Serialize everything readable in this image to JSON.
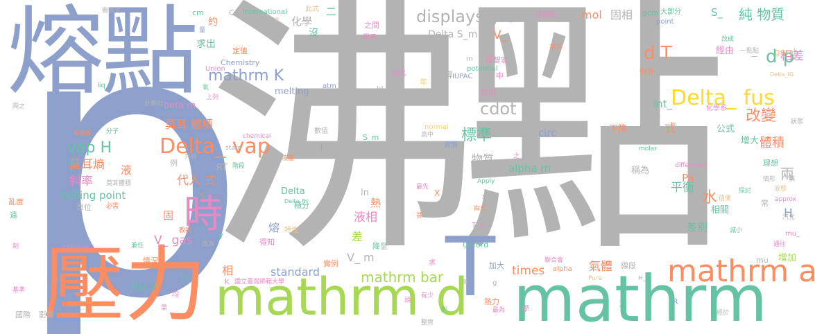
{
  "palette": {
    "gray": "#b3b3b3",
    "blue": "#8da0cb",
    "orange": "#fc8d62",
    "green": "#a6d854",
    "teal": "#66c2a5",
    "pink": "#e78ac3",
    "yellow": "#ffd92f",
    "tan": "#e5c494"
  },
  "words": [
    {
      "text": "沸點",
      "color": "gray"
    },
    {
      "text": "p",
      "color": "blue"
    },
    {
      "text": "熔點",
      "color": "blue"
    },
    {
      "text": "壓力",
      "color": "orange"
    },
    {
      "text": "mathrm",
      "color": "teal"
    },
    {
      "text": "mathrm d",
      "color": "green"
    },
    {
      "text": "T",
      "color": "blue"
    },
    {
      "text": "時",
      "color": "pink"
    },
    {
      "text": "mathrm atm",
      "color": "orange"
    },
    {
      "text": "Delta_ vap",
      "color": "orange"
    },
    {
      "text": "Delta_ fus",
      "color": "yellow"
    },
    {
      "text": "mathrm K",
      "color": "blue"
    },
    {
      "text": "d T",
      "color": "orange"
    },
    {
      "text": "d p",
      "color": "teal"
    },
    {
      "text": "displaystyle",
      "color": "gray"
    },
    {
      "text": "純 物質",
      "color": "teal"
    },
    {
      "text": "改變",
      "color": "orange"
    },
    {
      "text": "cdot",
      "color": "gray"
    },
    {
      "text": "標準",
      "color": "teal"
    },
    {
      "text": "vap H",
      "color": "teal"
    },
    {
      "text": "mathrm bar",
      "color": "green"
    },
    {
      "text": "莫耳 體積",
      "color": "orange"
    },
    {
      "text": "水",
      "color": "orange"
    },
    {
      "text": "體積",
      "color": "orange"
    },
    {
      "text": "相差",
      "color": "pink"
    },
    {
      "text": "兩",
      "color": "gray"
    },
    {
      "text": "代入 式",
      "color": "orange"
    },
    {
      "text": "莫耳熵",
      "color": "orange"
    },
    {
      "text": "斜率",
      "color": "pink"
    },
    {
      "text": "液相",
      "color": "pink"
    },
    {
      "text": "物質",
      "color": "gray"
    },
    {
      "text": "差別",
      "color": "teal"
    },
    {
      "text": "平衡",
      "color": "teal"
    },
    {
      "text": "氣體",
      "color": "orange"
    },
    {
      "text": "mol",
      "color": "orange"
    },
    {
      "text": "固相",
      "color": "gray"
    },
    {
      "text": "V_ gas",
      "color": "pink"
    },
    {
      "text": "V_ m",
      "color": "gray"
    },
    {
      "text": "fus V",
      "color": "teal"
    },
    {
      "text": "times",
      "color": "orange"
    },
    {
      "text": "standard",
      "color": "blue"
    },
    {
      "text": "boiling point",
      "color": "teal"
    },
    {
      "text": "Delta S_m",
      "color": "gray"
    },
    {
      "text": "alpha m",
      "color": "teal"
    },
    {
      "text": "circ",
      "color": "blue"
    },
    {
      "text": "int_",
      "color": "teal"
    },
    {
      "text": "S_",
      "color": "teal"
    },
    {
      "text": "V_",
      "color": "orange"
    },
    {
      "text": "Pa",
      "color": "orange"
    },
    {
      "text": "H",
      "color": "blue"
    },
    {
      "text": "式",
      "color": "orange"
    },
    {
      "text": "液",
      "color": "orange"
    },
    {
      "text": "固",
      "color": "orange"
    },
    {
      "text": "熔",
      "color": "blue"
    },
    {
      "text": "相",
      "color": "orange"
    },
    {
      "text": "差",
      "color": "green"
    },
    {
      "text": "熱",
      "color": "orange"
    },
    {
      "text": "化學",
      "color": "gray"
    },
    {
      "text": "沒",
      "color": "teal"
    },
    {
      "text": "二",
      "color": "teal"
    },
    {
      "text": "約",
      "color": "orange"
    },
    {
      "text": "求出",
      "color": "teal"
    },
    {
      "text": "RT",
      "color": "gray"
    },
    {
      "text": "beta m",
      "color": "pink"
    },
    {
      "text": "melting",
      "color": "blue"
    },
    {
      "text": "Delta",
      "color": "teal"
    },
    {
      "text": "ln",
      "color": "gray"
    },
    {
      "text": "下降",
      "color": "orange"
    },
    {
      "text": "稱為",
      "color": "gray"
    },
    {
      "text": "相關",
      "color": "teal"
    },
    {
      "text": "公式",
      "color": "teal"
    },
    {
      "text": "增大",
      "color": "teal"
    },
    {
      "text": "增加",
      "color": "green"
    },
    {
      "text": "經由",
      "color": "pink"
    },
    {
      "text": "gmol",
      "color": "tan"
    },
    {
      "text": "cm",
      "color": "teal"
    },
    {
      "text": "C",
      "color": "gray"
    },
    {
      "text": "International",
      "color": "teal"
    },
    {
      "text": "定值",
      "color": "orange"
    },
    {
      "text": "Chemistry",
      "color": "blue"
    },
    {
      "text": "Union",
      "color": "pink"
    },
    {
      "text": "e",
      "color": "tan"
    },
    {
      "text": "kJ",
      "color": "gray"
    },
    {
      "text": "atm",
      "color": "blue"
    },
    {
      "text": "年",
      "color": "yellow"
    },
    {
      "text": "邱智宏",
      "color": "pink"
    },
    {
      "text": "IUPAC",
      "color": "blue"
    },
    {
      "text": "potential",
      "color": "teal"
    },
    {
      "text": "中",
      "color": "pink"
    },
    {
      "text": "推導",
      "color": "gray"
    },
    {
      "text": "熔化",
      "color": "pink"
    },
    {
      "text": "氣相",
      "color": "pink"
    },
    {
      "text": "之間",
      "color": "pink"
    },
    {
      "text": "此式",
      "color": "tan"
    },
    {
      "text": "量",
      "color": "blue"
    },
    {
      "text": "gcm",
      "color": "teal"
    },
    {
      "text": "大部分",
      "color": "teal"
    },
    {
      "text": "point",
      "color": "blue"
    },
    {
      "text": "接觸到",
      "color": "pink"
    },
    {
      "text": "學子",
      "color": "pink"
    },
    {
      "text": "例外",
      "color": "orange"
    },
    {
      "text": "溫度",
      "color": "gray"
    },
    {
      "text": "化學系",
      "color": "pink"
    },
    {
      "text": "理想",
      "color": "teal"
    },
    {
      "text": "數值",
      "color": "gray"
    },
    {
      "text": "S_m",
      "color": "teal"
    },
    {
      "text": "大於",
      "color": "gray"
    },
    {
      "text": "X",
      "color": "orange"
    },
    {
      "text": "normal",
      "color": "yellow"
    },
    {
      "text": "習慣",
      "color": "blue"
    },
    {
      "text": "高中",
      "color": "gray"
    },
    {
      "text": "最先",
      "color": "pink"
    },
    {
      "text": "實例",
      "color": "orange"
    },
    {
      "text": "得知",
      "color": "pink"
    },
    {
      "text": "降至",
      "color": "teal"
    },
    {
      "text": "積分",
      "color": "teal"
    },
    {
      "text": "特性",
      "color": "tan"
    },
    {
      "text": "T_b",
      "color": "pink"
    },
    {
      "text": "beta",
      "color": "gray"
    },
    {
      "text": "Oxford",
      "color": "teal"
    },
    {
      "text": "加大",
      "color": "blue"
    },
    {
      "text": "求",
      "color": "pink"
    },
    {
      "text": "熱力",
      "color": "orange"
    },
    {
      "text": "學",
      "color": "pink"
    },
    {
      "text": "冰",
      "color": "teal"
    },
    {
      "text": "alpha",
      "color": "orange"
    },
    {
      "text": "Pure",
      "color": "tan"
    },
    {
      "text": "mu",
      "color": "gray"
    },
    {
      "text": "H_",
      "color": "gray"
    },
    {
      "text": "R",
      "color": "blue"
    },
    {
      "text": "線段",
      "color": "gray"
    },
    {
      "text": "聯合會",
      "color": "pink"
    },
    {
      "text": "國立臺灣師範大學",
      "color": "pink"
    },
    {
      "text": "情況",
      "color": "orange"
    },
    {
      "text": "單位",
      "color": "gray"
    },
    {
      "text": "例",
      "color": "gray"
    },
    {
      "text": "影響",
      "color": "gray"
    },
    {
      "text": "國際",
      "color": "gray"
    },
    {
      "text": "均",
      "color": "pink"
    },
    {
      "text": "改為",
      "color": "gray"
    },
    {
      "text": "兼任",
      "color": "teal"
    },
    {
      "text": "亂度",
      "color": "orange"
    },
    {
      "text": "遠",
      "color": "teal"
    },
    {
      "text": "制",
      "color": "pink"
    },
    {
      "text": "基準",
      "color": "pink"
    },
    {
      "text": "entropy",
      "color": "pink"
    },
    {
      "text": "教師",
      "color": "orange"
    },
    {
      "text": "莫耳體積",
      "color": "gray"
    },
    {
      "text": "分子",
      "color": "teal"
    },
    {
      "text": "有關係",
      "color": "orange"
    },
    {
      "text": "必需",
      "color": "orange"
    },
    {
      "text": "計算出",
      "color": "gray"
    },
    {
      "text": "上列",
      "color": "pink"
    },
    {
      "text": "隔之",
      "color": "gray"
    },
    {
      "text": "關係式",
      "color": "gray"
    },
    {
      "text": "chemical",
      "color": "pink"
    },
    {
      "text": "state",
      "color": "gray"
    },
    {
      "text": "階段",
      "color": "teal"
    },
    {
      "text": "共存",
      "color": "gray"
    },
    {
      "text": "液體",
      "color": "orange"
    },
    {
      "text": "Apply",
      "color": "teal"
    },
    {
      "text": "由式",
      "color": "orange"
    },
    {
      "text": "SI",
      "color": "gray"
    },
    {
      "text": "之",
      "color": "pink"
    },
    {
      "text": "Delta_fH",
      "color": "teal"
    },
    {
      "text": "物理",
      "color": "gray"
    },
    {
      "text": "molar",
      "color": "teal"
    },
    {
      "text": "phase",
      "color": "gray"
    },
    {
      "text": "difference",
      "color": "pink"
    },
    {
      "text": "情形",
      "color": "gray"
    },
    {
      "text": "狀態",
      "color": "gray"
    },
    {
      "text": "稱",
      "color": "gray"
    },
    {
      "text": "液態",
      "color": "tan"
    },
    {
      "text": "approx",
      "color": "pink"
    },
    {
      "text": "探討",
      "color": "teal"
    },
    {
      "text": "常",
      "color": "gray"
    },
    {
      "text": "汽化",
      "color": "gray"
    },
    {
      "text": "值便",
      "color": "tan"
    },
    {
      "text": "減小",
      "color": "teal"
    },
    {
      "text": "通往",
      "color": "pink"
    },
    {
      "text": "mu_",
      "color": "pink"
    },
    {
      "text": "經於",
      "color": "gray"
    },
    {
      "text": "改成",
      "color": "teal"
    },
    {
      "text": "一點點",
      "color": "gray"
    },
    {
      "text": "本文",
      "color": "orange"
    },
    {
      "text": "Delta_fG",
      "color": "tan"
    },
    {
      "text": "試",
      "color": "gray"
    },
    {
      "text": "m",
      "color": "gray"
    },
    {
      "text": "J",
      "color": "teal"
    },
    {
      "text": "g",
      "color": "gray"
    },
    {
      "text": "K",
      "color": "pink"
    },
    {
      "text": "有少",
      "color": "pink"
    },
    {
      "text": "微",
      "color": "gray"
    },
    {
      "text": "整齊",
      "color": "gray"
    },
    {
      "text": "頭",
      "color": "pink"
    },
    {
      "text": "甚",
      "color": "orange"
    },
    {
      "text": "最為",
      "color": "pink"
    },
    {
      "text": "則",
      "color": "teal"
    },
    {
      "text": "需",
      "color": "pink"
    },
    {
      "text": "氧",
      "color": "teal"
    },
    {
      "text": "間",
      "color": "teal"
    },
    {
      "text": "V",
      "color": "teal"
    },
    {
      "text": "S",
      "color": "orange"
    },
    {
      "text": "liq",
      "color": "teal"
    },
    {
      "text": "一",
      "color": "gray"
    }
  ]
}
